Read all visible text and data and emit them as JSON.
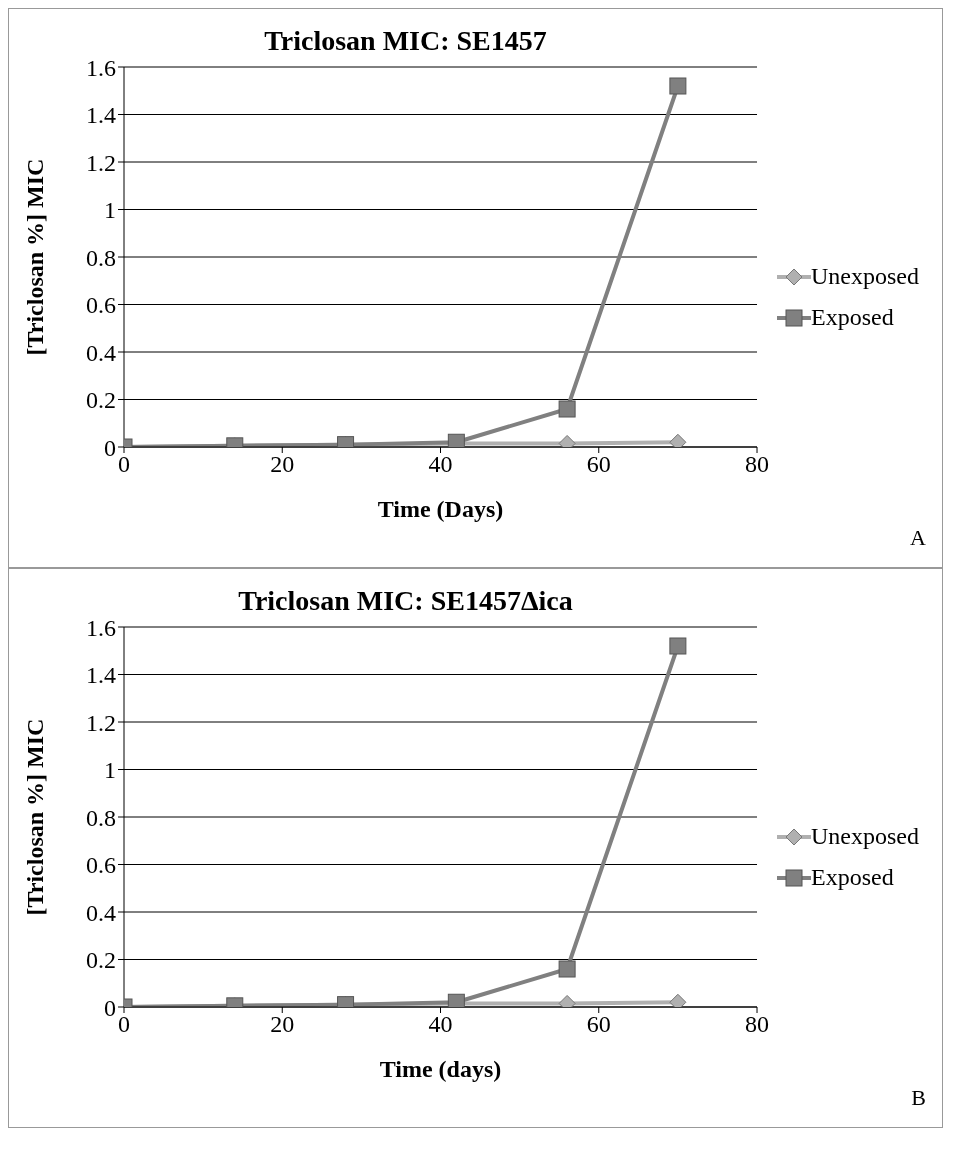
{
  "chart_data": [
    {
      "type": "line",
      "title": "Triclosan MIC: SE1457",
      "xlabel": "Time (Days)",
      "ylabel": "[Triclosan %] MIC",
      "x": [
        0,
        14,
        28,
        42,
        56,
        70
      ],
      "xlim": [
        0,
        80
      ],
      "xticks": [
        0,
        20,
        40,
        60,
        80
      ],
      "ylim": [
        0,
        1.6
      ],
      "yticks": [
        0,
        0.2,
        0.4,
        0.6,
        0.8,
        1,
        1.2,
        1.4,
        1.6
      ],
      "grid": "y",
      "legend": "right",
      "annotations": [
        "A"
      ],
      "series": [
        {
          "name": "Unexposed",
          "color": "#b0b0b0",
          "marker": "diamond",
          "values": [
            0,
            0.005,
            0.01,
            0.015,
            0.015,
            0.02
          ]
        },
        {
          "name": "Exposed",
          "color": "#808080",
          "marker": "square",
          "values": [
            0,
            0.005,
            0.01,
            0.02,
            0.16,
            1.52
          ]
        }
      ]
    },
    {
      "type": "line",
      "title": "Triclosan MIC: SE1457Δica",
      "xlabel": "Time (days)",
      "ylabel": "[Triclosan %] MIC",
      "x": [
        0,
        14,
        28,
        42,
        56,
        70
      ],
      "xlim": [
        0,
        80
      ],
      "xticks": [
        0,
        20,
        40,
        60,
        80
      ],
      "ylim": [
        0,
        1.6
      ],
      "yticks": [
        0,
        0.2,
        0.4,
        0.6,
        0.8,
        1,
        1.2,
        1.4,
        1.6
      ],
      "grid": "y",
      "legend": "right",
      "annotations": [
        "B"
      ],
      "series": [
        {
          "name": "Unexposed",
          "color": "#b0b0b0",
          "marker": "diamond",
          "values": [
            0,
            0.005,
            0.01,
            0.015,
            0.015,
            0.02
          ]
        },
        {
          "name": "Exposed",
          "color": "#808080",
          "marker": "square",
          "values": [
            0,
            0.005,
            0.01,
            0.02,
            0.16,
            1.52
          ]
        }
      ]
    }
  ]
}
